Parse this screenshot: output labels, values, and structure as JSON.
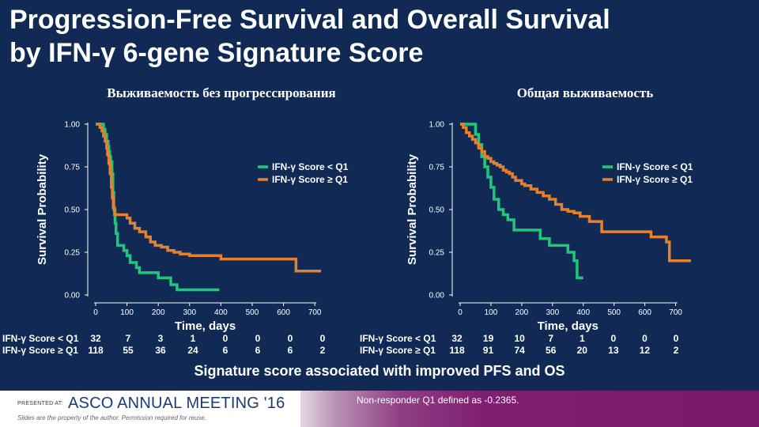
{
  "slide": {
    "title_line1": "Progression-Free Survival and Overall Survival",
    "title_line2": "by IFN-γ 6-gene Signature Score",
    "conclusion": "Signature score associated with improved PFS and OS",
    "note": "Non-responder Q1 defined as -0.2365.",
    "footer": {
      "presented": "PRESENTED AT:",
      "meeting": "ASCO ANNUAL MEETING '16",
      "rights": "Slides are the property of the author. Permission required for reuse."
    }
  },
  "colors": {
    "background": "#102a55",
    "low": "#1fc77a",
    "high": "#e5812e",
    "text": "#ffffff"
  },
  "chart_data": [
    {
      "type": "line",
      "step": true,
      "title": "Выживаемость без прогрессирования",
      "xlabel": "Time, days",
      "ylabel": "Survival Probability",
      "xlim": [
        0,
        740
      ],
      "ylim": [
        0,
        1
      ],
      "xticks": [
        "0",
        "100",
        "200",
        "300",
        "400",
        "500",
        "600",
        "700"
      ],
      "yticks": [
        "0.00",
        "0.25",
        "0.50",
        "0.75",
        "1.00"
      ],
      "legend_position": "right",
      "series": [
        {
          "name": "IFN-γ Score < Q1",
          "x": [
            0,
            20,
            25,
            30,
            35,
            40,
            42,
            45,
            48,
            52,
            55,
            58,
            62,
            65,
            70,
            80,
            90,
            100,
            110,
            130,
            140,
            150,
            180,
            200,
            230,
            240,
            260,
            280,
            300,
            395
          ],
          "y": [
            1.0,
            1.0,
            0.97,
            0.94,
            0.9,
            0.87,
            0.84,
            0.81,
            0.78,
            0.71,
            0.6,
            0.5,
            0.42,
            0.36,
            0.29,
            0.29,
            0.26,
            0.23,
            0.19,
            0.16,
            0.13,
            0.13,
            0.13,
            0.1,
            0.1,
            0.06,
            0.03,
            0.03,
            0.03,
            0.03
          ]
        },
        {
          "name": "IFN-γ Score ≥ Q1",
          "x": [
            0,
            8,
            14,
            20,
            25,
            30,
            35,
            38,
            42,
            46,
            50,
            53,
            56,
            60,
            64,
            100,
            110,
            125,
            140,
            160,
            175,
            190,
            210,
            230,
            250,
            270,
            300,
            350,
            400,
            430,
            460,
            500,
            530,
            560,
            580,
            600,
            620,
            640,
            700,
            720
          ],
          "y": [
            1.0,
            1.0,
            0.98,
            0.96,
            0.93,
            0.9,
            0.86,
            0.82,
            0.77,
            0.71,
            0.63,
            0.57,
            0.51,
            0.47,
            0.47,
            0.45,
            0.42,
            0.39,
            0.37,
            0.34,
            0.31,
            0.29,
            0.28,
            0.26,
            0.25,
            0.24,
            0.23,
            0.23,
            0.21,
            0.21,
            0.21,
            0.21,
            0.21,
            0.21,
            0.21,
            0.21,
            0.21,
            0.14,
            0.14,
            0.14
          ]
        }
      ],
      "risk_table": {
        "times": [
          "0",
          "100",
          "200",
          "300",
          "400",
          "500",
          "600",
          "700"
        ],
        "rows": [
          {
            "label": "IFN-γ Score < Q1",
            "values": [
              "32",
              "7",
              "3",
              "1",
              "0",
              "0",
              "0",
              "0"
            ]
          },
          {
            "label": "IFN-γ Score ≥ Q1",
            "values": [
              "118",
              "55",
              "36",
              "24",
              "6",
              "6",
              "6",
              "2"
            ]
          }
        ]
      }
    },
    {
      "type": "line",
      "step": true,
      "title": "Общая выживаемость",
      "xlabel": "Time, days",
      "ylabel": "Survival Probability",
      "xlim": [
        0,
        750
      ],
      "ylim": [
        0,
        1
      ],
      "xticks": [
        "0",
        "100",
        "200",
        "300",
        "400",
        "500",
        "600",
        "700"
      ],
      "yticks": [
        "0.00",
        "0.25",
        "0.50",
        "0.75",
        "1.00"
      ],
      "legend_position": "right",
      "series": [
        {
          "name": "IFN-γ Score < Q1",
          "x": [
            0,
            40,
            50,
            60,
            70,
            80,
            90,
            100,
            110,
            125,
            140,
            155,
            175,
            240,
            260,
            290,
            320,
            350,
            370,
            380,
            400
          ],
          "y": [
            1.0,
            1.0,
            0.94,
            0.88,
            0.81,
            0.75,
            0.69,
            0.63,
            0.56,
            0.5,
            0.47,
            0.44,
            0.38,
            0.38,
            0.33,
            0.29,
            0.29,
            0.25,
            0.2,
            0.1,
            0.1
          ]
        },
        {
          "name": "IFN-γ Score ≥ Q1",
          "x": [
            0,
            10,
            20,
            30,
            40,
            50,
            60,
            70,
            80,
            90,
            100,
            110,
            120,
            130,
            140,
            150,
            160,
            170,
            180,
            200,
            210,
            230,
            250,
            270,
            290,
            310,
            330,
            350,
            370,
            390,
            420,
            460,
            620,
            670,
            680,
            700,
            750
          ],
          "y": [
            1.0,
            0.98,
            0.95,
            0.93,
            0.91,
            0.89,
            0.86,
            0.84,
            0.81,
            0.8,
            0.78,
            0.77,
            0.76,
            0.75,
            0.73,
            0.72,
            0.71,
            0.69,
            0.67,
            0.65,
            0.64,
            0.62,
            0.6,
            0.58,
            0.56,
            0.53,
            0.5,
            0.49,
            0.48,
            0.46,
            0.43,
            0.37,
            0.34,
            0.31,
            0.2,
            0.2,
            0.2
          ]
        }
      ],
      "risk_table": {
        "times": [
          "0",
          "100",
          "200",
          "300",
          "400",
          "500",
          "600",
          "700"
        ],
        "rows": [
          {
            "label": "IFN-γ Score < Q1",
            "values": [
              "32",
              "19",
              "10",
              "7",
              "1",
              "0",
              "0",
              "0"
            ]
          },
          {
            "label": "IFN-γ Score ≥ Q1",
            "values": [
              "118",
              "91",
              "74",
              "56",
              "20",
              "13",
              "12",
              "2"
            ]
          }
        ]
      }
    }
  ]
}
